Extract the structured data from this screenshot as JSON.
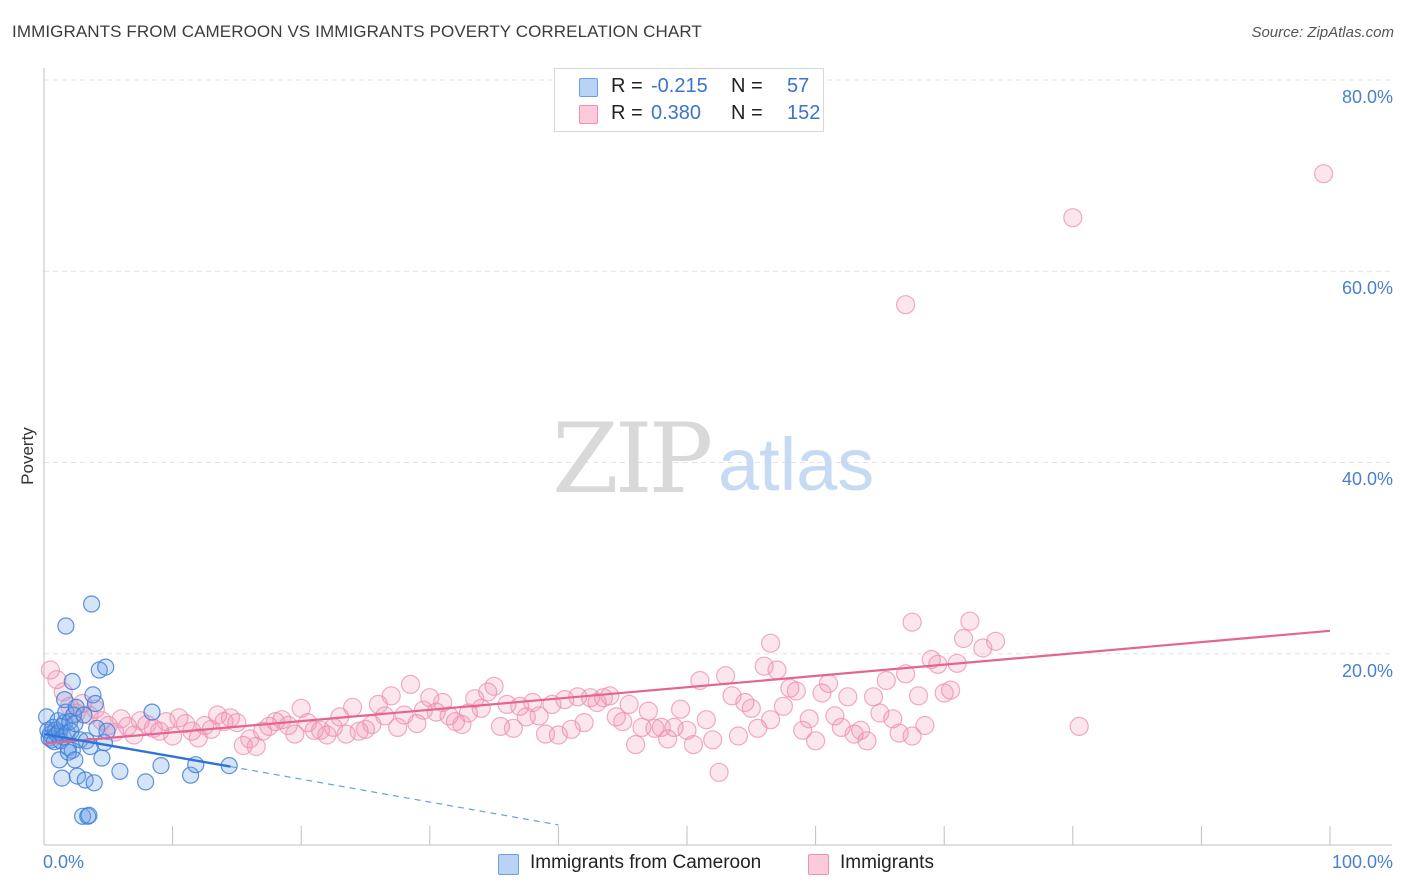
{
  "header": {
    "title": "IMMIGRANTS FROM CAMEROON VS IMMIGRANTS POVERTY CORRELATION CHART",
    "source": "Source: ZipAtlas.com"
  },
  "watermark": {
    "zip": "ZIP",
    "atlas": "atlas"
  },
  "legend": {
    "rows": [
      {
        "r_label": "R =",
        "r_value": "-0.215",
        "n_label": "N =",
        "n_value": "57",
        "color": "#6a9ee6"
      },
      {
        "r_label": "R =",
        "r_value": "0.380",
        "n_label": "N =",
        "n_value": "152",
        "color": "#ee8fae"
      }
    ]
  },
  "bottom_legend": {
    "series1": "Immigrants from Cameroon",
    "series2": "Immigrants"
  },
  "chart_data": {
    "type": "scatter",
    "title": "IMMIGRANTS FROM CAMEROON VS IMMIGRANTS POVERTY CORRELATION CHART",
    "xlabel": "",
    "ylabel": "Poverty",
    "xlim": [
      0,
      100
    ],
    "ylim": [
      0,
      80
    ],
    "x_tick_labels": [
      "0.0%",
      "100.0%"
    ],
    "y_ticks": [
      20,
      40,
      60,
      80
    ],
    "y_tick_labels": [
      "20.0%",
      "40.0%",
      "60.0%",
      "80.0%"
    ],
    "grid": true,
    "series": [
      {
        "name": "Immigrants from Cameroon",
        "color": "#6a9ee6",
        "trend": {
          "x0": 0,
          "y0": 11.6,
          "x1": 14.5,
          "y1": 8.2,
          "dashed_to_x": 40,
          "dashed_to_y": 2.1
        },
        "points": [
          [
            0.2,
            13.4
          ],
          [
            0.3,
            12.0
          ],
          [
            0.4,
            11.2
          ],
          [
            0.5,
            11.6
          ],
          [
            0.6,
            11.0
          ],
          [
            0.7,
            12.3
          ],
          [
            0.8,
            10.8
          ],
          [
            0.9,
            12.0
          ],
          [
            1.0,
            11.6
          ],
          [
            1.1,
            13.0
          ],
          [
            1.2,
            11.8
          ],
          [
            1.3,
            10.9
          ],
          [
            1.4,
            12.4
          ],
          [
            1.5,
            11.3
          ],
          [
            1.6,
            12.8
          ],
          [
            1.7,
            13.9
          ],
          [
            1.8,
            11.7
          ],
          [
            1.9,
            10.2
          ],
          [
            2.0,
            12.9
          ],
          [
            2.1,
            11.9
          ],
          [
            2.2,
            9.9
          ],
          [
            2.3,
            13.6
          ],
          [
            2.4,
            12.7
          ],
          [
            2.5,
            14.4
          ],
          [
            1.2,
            8.9
          ],
          [
            1.4,
            7.0
          ],
          [
            1.6,
            15.2
          ],
          [
            1.7,
            22.9
          ],
          [
            1.9,
            9.7
          ],
          [
            2.2,
            17.1
          ],
          [
            2.4,
            8.9
          ],
          [
            2.6,
            7.2
          ],
          [
            2.8,
            11.0
          ],
          [
            3.0,
            3.0
          ],
          [
            3.1,
            13.6
          ],
          [
            3.2,
            6.8
          ],
          [
            3.3,
            10.9
          ],
          [
            3.4,
            3.0
          ],
          [
            3.5,
            3.1
          ],
          [
            3.6,
            10.3
          ],
          [
            3.8,
            15.7
          ],
          [
            3.9,
            6.5
          ],
          [
            4.0,
            14.8
          ],
          [
            4.1,
            12.2
          ],
          [
            4.3,
            18.3
          ],
          [
            4.5,
            9.1
          ],
          [
            4.7,
            10.7
          ],
          [
            4.9,
            11.9
          ],
          [
            3.7,
            25.2
          ],
          [
            4.8,
            18.6
          ],
          [
            5.9,
            7.7
          ],
          [
            7.9,
            6.6
          ],
          [
            8.4,
            13.9
          ],
          [
            9.1,
            8.3
          ],
          [
            11.4,
            7.3
          ],
          [
            11.8,
            8.4
          ],
          [
            14.4,
            8.3
          ]
        ]
      },
      {
        "name": "Immigrants",
        "color": "#ee8fae",
        "trend": {
          "x0": 0,
          "y0": 10.6,
          "x1": 100,
          "y1": 22.4
        },
        "points": [
          [
            0.5,
            18.3
          ],
          [
            1.0,
            17.3
          ],
          [
            1.5,
            16.0
          ],
          [
            2.0,
            14.5
          ],
          [
            2.5,
            13.8
          ],
          [
            3.0,
            14.8
          ],
          [
            3.5,
            13.6
          ],
          [
            4.0,
            14.2
          ],
          [
            4.5,
            13.0
          ],
          [
            5.0,
            12.5
          ],
          [
            5.5,
            11.8
          ],
          [
            6.0,
            13.2
          ],
          [
            6.5,
            12.4
          ],
          [
            7.0,
            11.5
          ],
          [
            7.5,
            13.0
          ],
          [
            8.0,
            12.6
          ],
          [
            8.5,
            12.2
          ],
          [
            9.0,
            11.9
          ],
          [
            9.5,
            12.9
          ],
          [
            10.0,
            11.4
          ],
          [
            10.5,
            13.3
          ],
          [
            11.0,
            12.7
          ],
          [
            11.5,
            11.9
          ],
          [
            12.0,
            11.2
          ],
          [
            12.5,
            12.5
          ],
          [
            13.0,
            12.1
          ],
          [
            13.5,
            13.6
          ],
          [
            14.0,
            12.9
          ],
          [
            14.5,
            13.3
          ],
          [
            15.0,
            12.8
          ],
          [
            15.5,
            10.4
          ],
          [
            16.0,
            11.1
          ],
          [
            16.5,
            10.3
          ],
          [
            17.0,
            11.9
          ],
          [
            17.5,
            12.4
          ],
          [
            18.0,
            12.9
          ],
          [
            18.5,
            13.1
          ],
          [
            19.0,
            12.5
          ],
          [
            19.5,
            11.6
          ],
          [
            20.0,
            14.3
          ],
          [
            20.5,
            12.8
          ],
          [
            21.0,
            12.0
          ],
          [
            21.5,
            12.0
          ],
          [
            22.0,
            11.5
          ],
          [
            22.5,
            12.3
          ],
          [
            23.0,
            13.4
          ],
          [
            23.5,
            11.6
          ],
          [
            24.0,
            14.4
          ],
          [
            24.5,
            11.9
          ],
          [
            25.0,
            12.1
          ],
          [
            25.5,
            12.6
          ],
          [
            26.0,
            14.7
          ],
          [
            26.5,
            13.5
          ],
          [
            27.0,
            15.6
          ],
          [
            27.5,
            12.3
          ],
          [
            28.0,
            13.6
          ],
          [
            28.5,
            16.8
          ],
          [
            29.0,
            12.7
          ],
          [
            29.5,
            14.1
          ],
          [
            30.0,
            15.4
          ],
          [
            30.5,
            13.9
          ],
          [
            31.0,
            14.9
          ],
          [
            31.5,
            13.5
          ],
          [
            32.0,
            12.9
          ],
          [
            32.5,
            12.6
          ],
          [
            33.0,
            13.8
          ],
          [
            33.5,
            15.3
          ],
          [
            34.0,
            14.3
          ],
          [
            34.5,
            16.0
          ],
          [
            35.0,
            16.6
          ],
          [
            35.5,
            12.4
          ],
          [
            36.0,
            14.7
          ],
          [
            36.5,
            12.2
          ],
          [
            37.0,
            14.5
          ],
          [
            37.5,
            13.4
          ],
          [
            38.0,
            14.9
          ],
          [
            38.5,
            13.5
          ],
          [
            39.0,
            11.6
          ],
          [
            39.5,
            14.7
          ],
          [
            40.0,
            11.5
          ],
          [
            40.5,
            15.2
          ],
          [
            41.0,
            12.1
          ],
          [
            41.5,
            15.5
          ],
          [
            42.0,
            12.8
          ],
          [
            42.5,
            15.4
          ],
          [
            43.0,
            14.9
          ],
          [
            43.5,
            15.4
          ],
          [
            44.0,
            15.6
          ],
          [
            44.5,
            13.4
          ],
          [
            45.0,
            12.9
          ],
          [
            45.5,
            14.7
          ],
          [
            46.0,
            10.5
          ],
          [
            46.5,
            12.3
          ],
          [
            47.0,
            14.0
          ],
          [
            47.5,
            12.2
          ],
          [
            48.0,
            12.3
          ],
          [
            48.5,
            11.1
          ],
          [
            49.0,
            12.3
          ],
          [
            49.5,
            14.2
          ],
          [
            50.0,
            12.0
          ],
          [
            50.5,
            10.5
          ],
          [
            51.0,
            17.2
          ],
          [
            51.5,
            13.1
          ],
          [
            52.0,
            11.0
          ],
          [
            52.5,
            7.6
          ],
          [
            53.0,
            17.7
          ],
          [
            53.5,
            15.6
          ],
          [
            54.0,
            11.4
          ],
          [
            54.5,
            14.9
          ],
          [
            55.0,
            14.3
          ],
          [
            55.5,
            12.2
          ],
          [
            56.0,
            18.7
          ],
          [
            56.5,
            13.1
          ],
          [
            57.0,
            18.3
          ],
          [
            57.5,
            14.5
          ],
          [
            58.0,
            16.4
          ],
          [
            58.5,
            16.1
          ],
          [
            59.0,
            12.0
          ],
          [
            59.5,
            13.2
          ],
          [
            60.0,
            10.9
          ],
          [
            60.5,
            15.9
          ],
          [
            61.0,
            16.9
          ],
          [
            61.5,
            13.5
          ],
          [
            62.0,
            12.3
          ],
          [
            62.5,
            15.5
          ],
          [
            63.0,
            11.6
          ],
          [
            63.5,
            12.0
          ],
          [
            64.0,
            10.9
          ],
          [
            64.5,
            15.5
          ],
          [
            65.0,
            13.8
          ],
          [
            65.5,
            17.2
          ],
          [
            66.0,
            13.2
          ],
          [
            66.5,
            11.7
          ],
          [
            67.0,
            17.9
          ],
          [
            67.5,
            11.4
          ],
          [
            68.0,
            15.6
          ],
          [
            68.5,
            12.5
          ],
          [
            69.0,
            19.4
          ],
          [
            69.5,
            18.9
          ],
          [
            70.0,
            15.9
          ],
          [
            70.5,
            16.2
          ],
          [
            71.0,
            19.0
          ],
          [
            71.5,
            21.6
          ],
          [
            72.0,
            23.4
          ],
          [
            73.0,
            20.6
          ],
          [
            74.0,
            21.3
          ],
          [
            80.5,
            12.4
          ],
          [
            56.5,
            21.1
          ],
          [
            67.5,
            23.3
          ],
          [
            80.0,
            65.6
          ],
          [
            67.0,
            56.5
          ],
          [
            99.5,
            70.2
          ]
        ]
      }
    ]
  }
}
